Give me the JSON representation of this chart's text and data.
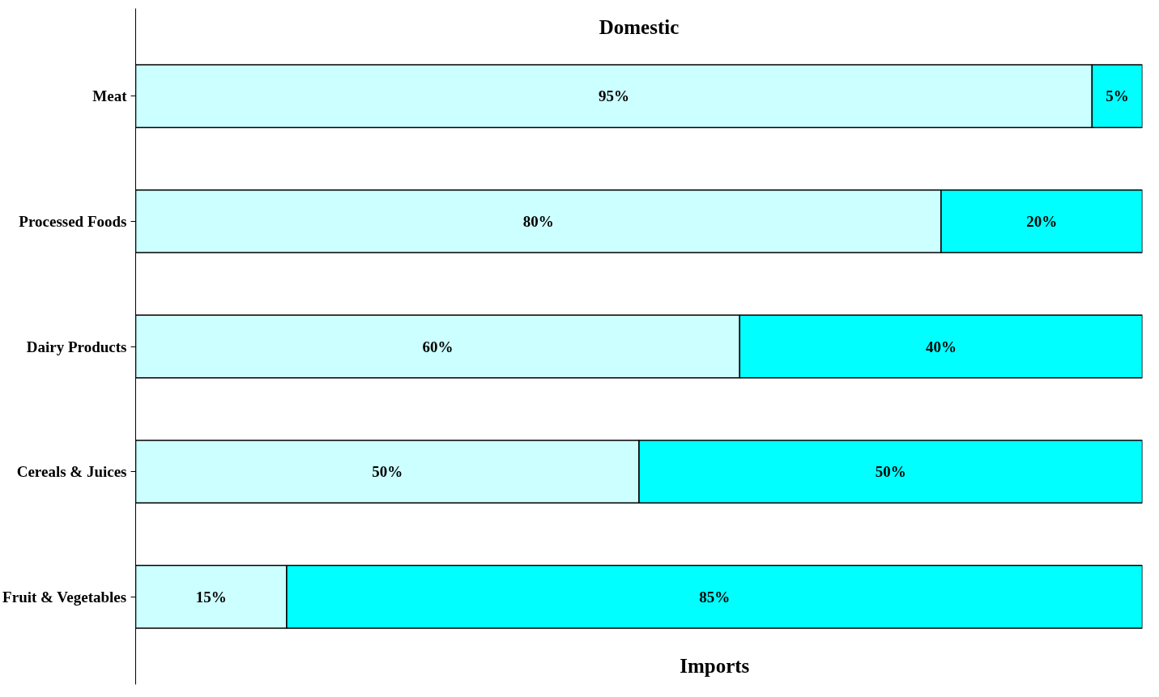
{
  "chart_data": {
    "type": "bar",
    "orientation": "horizontal",
    "stacked": true,
    "tick_labels": "y",
    "legend": false,
    "categories": [
      "Meat",
      "Processed Foods",
      "Dairy Products",
      "Cereals & Juices",
      "Fruit & Vegetables"
    ],
    "series": [
      {
        "name": "Domestic",
        "color": "#ccffff",
        "values": [
          95,
          80,
          60,
          50,
          15
        ],
        "value_labels": [
          "95%",
          "80%",
          "60%",
          "50%",
          "15%"
        ]
      },
      {
        "name": "Imports",
        "color": "#00ffff",
        "values": [
          5,
          20,
          40,
          50,
          85
        ],
        "value_labels": [
          "5%",
          "20%",
          "40%",
          "50%",
          "85%"
        ]
      }
    ]
  }
}
